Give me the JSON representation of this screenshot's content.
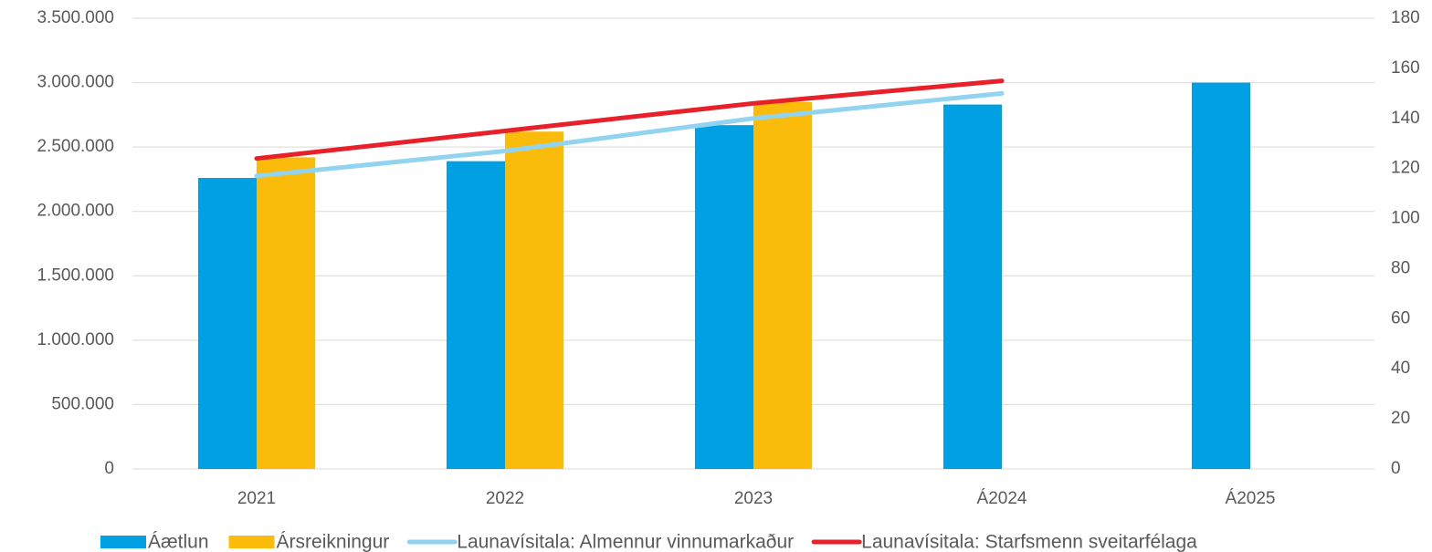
{
  "chart_data": {
    "type": "bar",
    "categories": [
      "2021",
      "2022",
      "2023",
      "Á2024",
      "Á2025"
    ],
    "series": [
      {
        "name": "Áætlun",
        "color": "#00a0e3",
        "type": "bar",
        "values": [
          2260000,
          2390000,
          2670000,
          2830000,
          3000000
        ]
      },
      {
        "name": "Ársreikningur",
        "color": "#fbbb0b",
        "type": "bar",
        "values": [
          2420000,
          2620000,
          2850000,
          null,
          null
        ]
      },
      {
        "name": "Launavísitala: Almennur vinnumarkaður",
        "color": "#92d4f0",
        "type": "line",
        "axis": "y2",
        "values": [
          117,
          127,
          140,
          150,
          null
        ]
      },
      {
        "name": "Launavísitala: Starfsmenn sveitarfélaga",
        "color": "#e8202a",
        "type": "line",
        "axis": "y2",
        "values": [
          124,
          135,
          146,
          155,
          null
        ]
      }
    ],
    "ylim": [
      0,
      3500000
    ],
    "yticks": [
      0,
      {
        "value": 500000,
        "label": "500.000"
      },
      {
        "value": 1000000,
        "label": "1.000.000"
      },
      {
        "value": 1500000,
        "label": "1.500.000"
      },
      {
        "value": 2000000,
        "label": "2.000.000"
      },
      {
        "value": 2500000,
        "label": "2.500.000"
      },
      {
        "value": 3000000,
        "label": "3.000.000"
      },
      {
        "value": 3500000,
        "label": "3.500.000"
      }
    ],
    "y2lim": [
      0,
      180
    ],
    "y2ticks": [
      0,
      20,
      40,
      60,
      80,
      100,
      120,
      140,
      160,
      180
    ],
    "grid": true,
    "legend": "bottom"
  }
}
